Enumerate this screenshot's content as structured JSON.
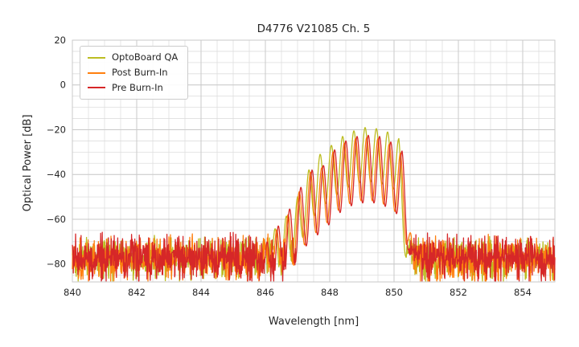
{
  "chart_data": {
    "type": "line",
    "title": "D4776 V21085 Ch. 5",
    "xlabel": "Wavelength [nm]",
    "ylabel": "Optical Power [dB]",
    "xlim": [
      840,
      855
    ],
    "ylim": [
      -88,
      20
    ],
    "xticks": [
      840,
      842,
      844,
      846,
      848,
      850,
      852,
      854
    ],
    "yticks": [
      20,
      0,
      -20,
      -40,
      -60,
      -80
    ],
    "minor_x_step": 0.5,
    "minor_y_step": 5,
    "grid": true,
    "legend_position": "upper left",
    "series": [
      {
        "name": "OptoBoard QA",
        "color": "#bcbd22",
        "noise_floor_db": -78,
        "noise_amplitude_db": 8,
        "seed": 42,
        "mode_spacing_nm": 0.35,
        "mode_phase_nm": 849.1,
        "mode_depth_db": 24,
        "envelope": [
          [
            840,
            -76
          ],
          [
            845.6,
            -76
          ],
          [
            846.0,
            -68
          ],
          [
            846.4,
            -63
          ],
          [
            846.8,
            -56
          ],
          [
            847.0,
            -50
          ],
          [
            847.35,
            -38
          ],
          [
            847.7,
            -31
          ],
          [
            848.05,
            -27
          ],
          [
            848.4,
            -23
          ],
          [
            848.75,
            -20.5
          ],
          [
            849.1,
            -19
          ],
          [
            849.45,
            -19.5
          ],
          [
            849.8,
            -21
          ],
          [
            850.15,
            -24
          ],
          [
            850.3,
            -45
          ],
          [
            850.45,
            -70
          ],
          [
            850.6,
            -78
          ],
          [
            855,
            -78
          ]
        ]
      },
      {
        "name": "Post Burn-In",
        "color": "#ff7f0e",
        "noise_floor_db": -78,
        "noise_amplitude_db": 8.5,
        "seed": 1337,
        "mode_spacing_nm": 0.35,
        "mode_phase_nm": 849.15,
        "mode_depth_db": 28,
        "envelope": [
          [
            840,
            -77
          ],
          [
            845.8,
            -77
          ],
          [
            846.2,
            -67
          ],
          [
            846.6,
            -61
          ],
          [
            847.0,
            -49
          ],
          [
            847.4,
            -39
          ],
          [
            847.75,
            -37
          ],
          [
            848.1,
            -30
          ],
          [
            848.45,
            -26
          ],
          [
            848.8,
            -24
          ],
          [
            849.15,
            -23.5
          ],
          [
            849.5,
            -24
          ],
          [
            849.85,
            -26.5
          ],
          [
            850.2,
            -30.5
          ],
          [
            850.42,
            -46
          ],
          [
            850.55,
            -70
          ],
          [
            850.65,
            -78
          ],
          [
            855,
            -78
          ]
        ]
      },
      {
        "name": "Pre Burn-In",
        "color": "#d62728",
        "noise_floor_db": -78,
        "noise_amplitude_db": 9,
        "seed": 2024,
        "mode_spacing_nm": 0.35,
        "mode_phase_nm": 849.2,
        "mode_depth_db": 30,
        "envelope": [
          [
            840,
            -77
          ],
          [
            845.8,
            -77
          ],
          [
            846.2,
            -66
          ],
          [
            846.6,
            -60
          ],
          [
            847.0,
            -48
          ],
          [
            847.45,
            -38
          ],
          [
            847.8,
            -36
          ],
          [
            848.15,
            -29
          ],
          [
            848.5,
            -25
          ],
          [
            848.85,
            -23
          ],
          [
            849.2,
            -22.5
          ],
          [
            849.55,
            -23
          ],
          [
            849.9,
            -25.5
          ],
          [
            850.25,
            -29.5
          ],
          [
            850.45,
            -45
          ],
          [
            850.55,
            -70
          ],
          [
            850.65,
            -78
          ],
          [
            855,
            -78
          ]
        ]
      }
    ]
  }
}
